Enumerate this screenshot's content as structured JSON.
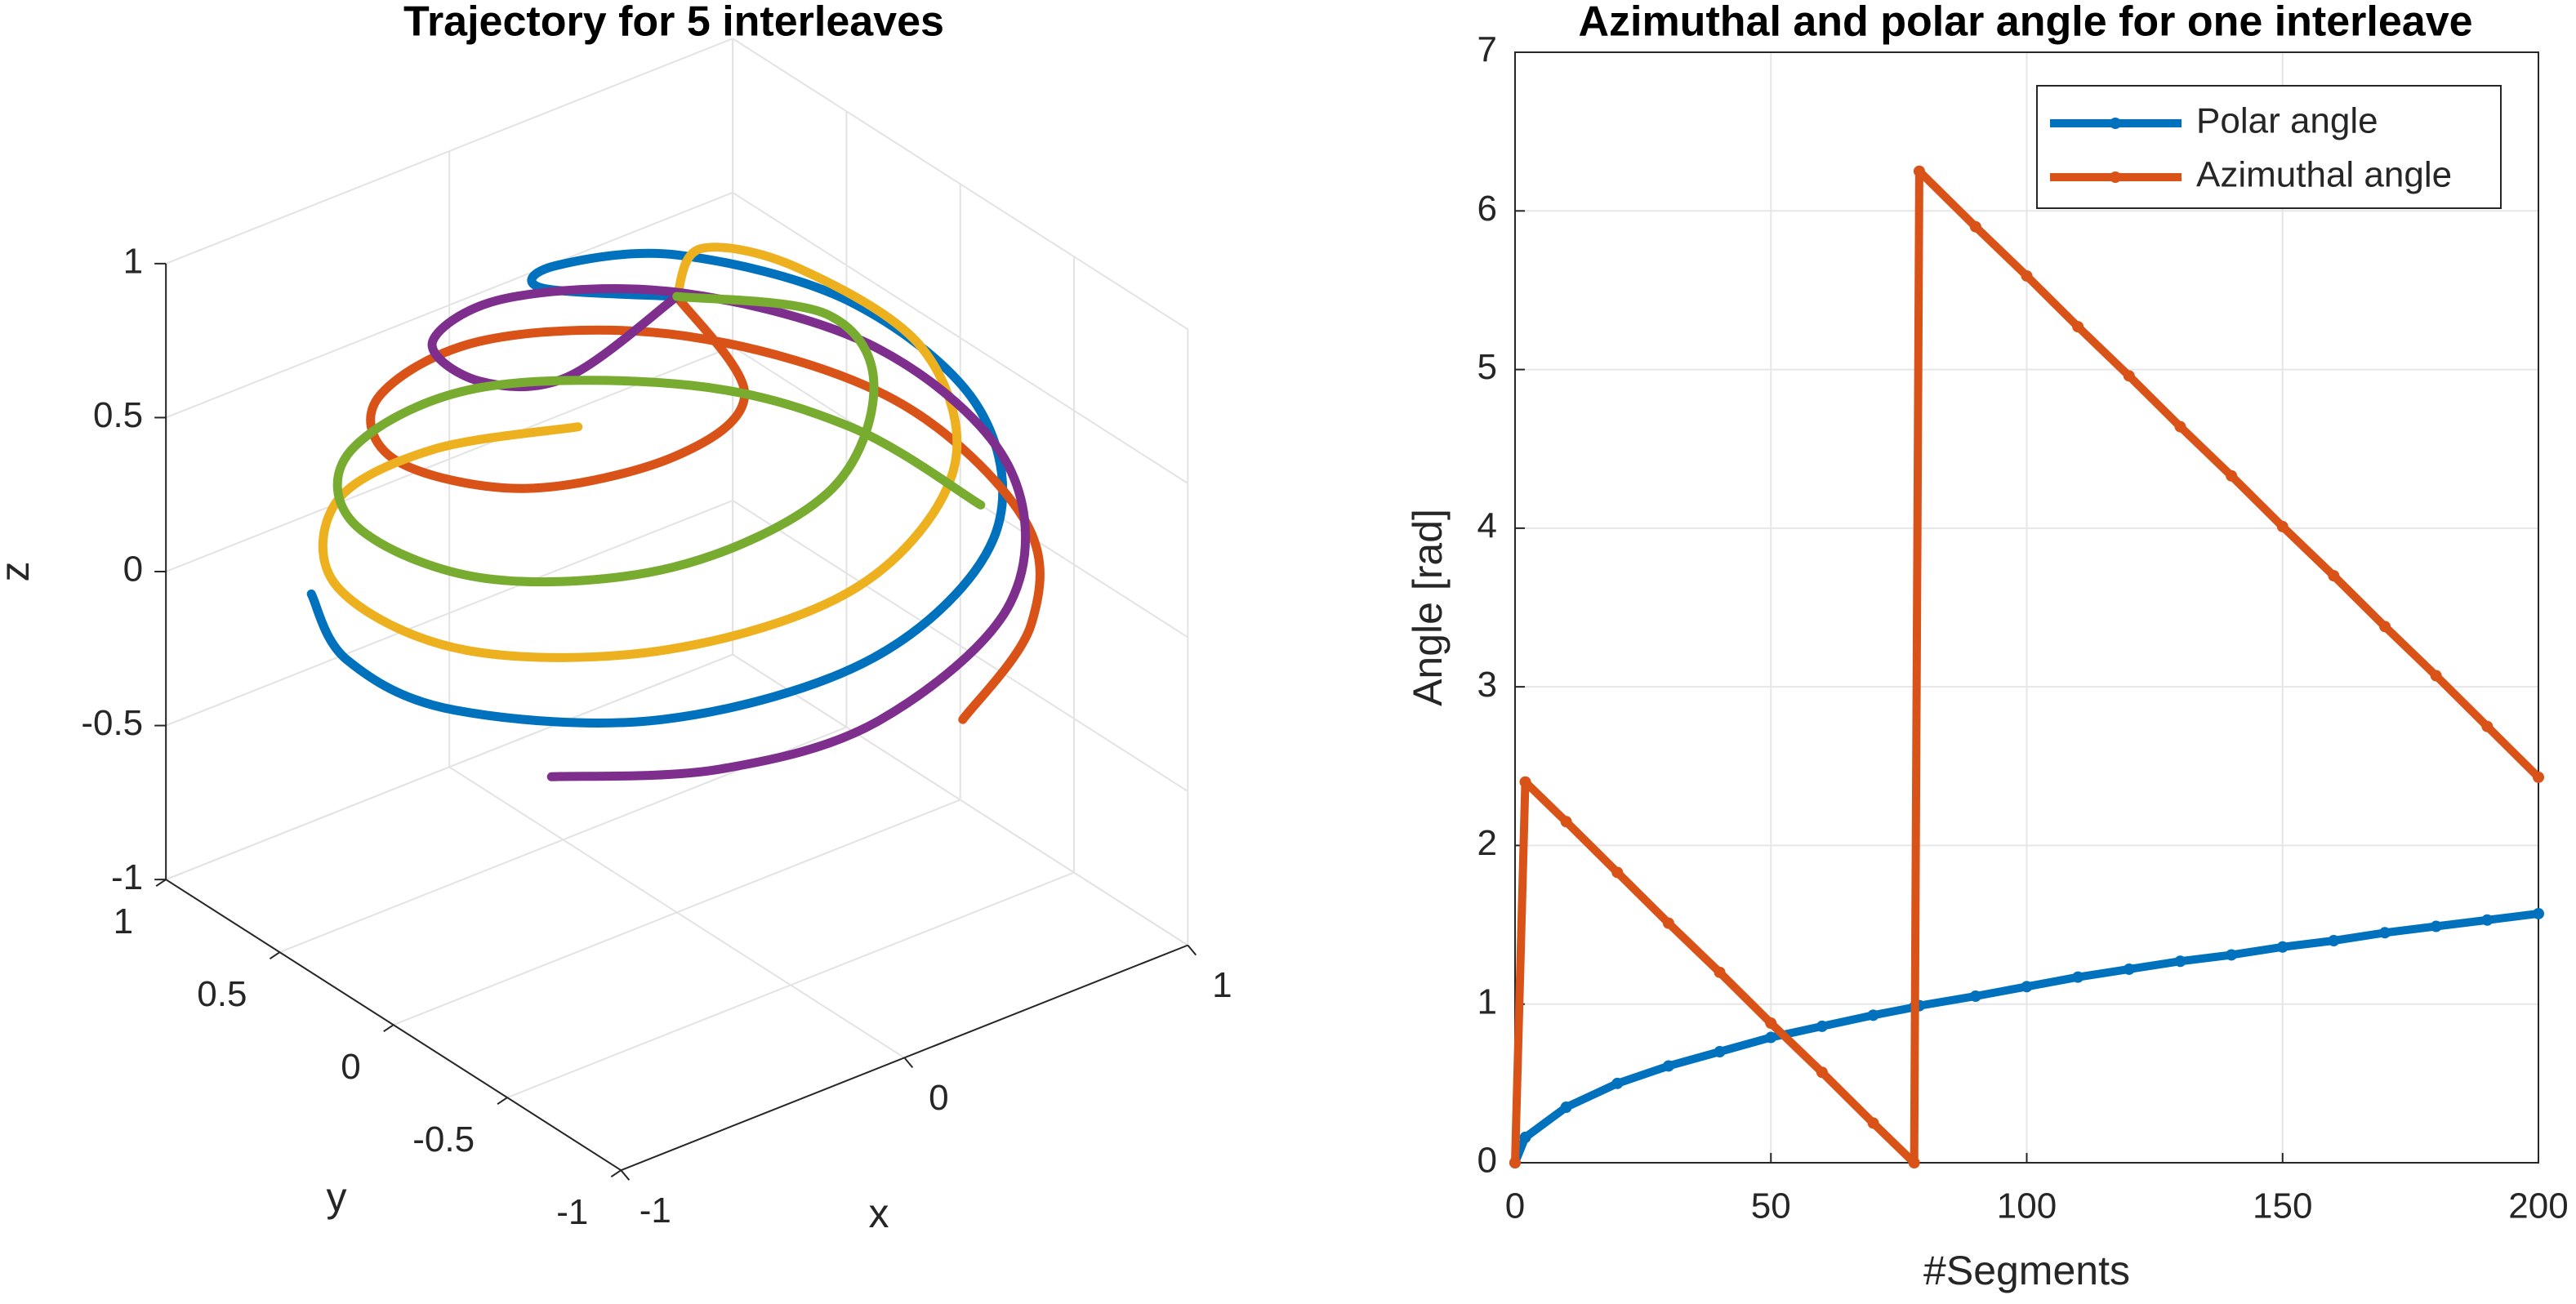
{
  "chart_data": [
    {
      "type": "line3d",
      "title": "Trajectory for 5 interleaves",
      "xlabel": "x",
      "ylabel": "y",
      "zlabel": "z",
      "xlim": [
        -1,
        1
      ],
      "ylim": [
        -1,
        1
      ],
      "zlim": [
        -1,
        1
      ],
      "xticks": [
        -1,
        0,
        1
      ],
      "yticks": [
        -1,
        -0.5,
        0,
        0.5,
        1
      ],
      "zticks": [
        -1,
        -0.5,
        0,
        0.5,
        1
      ],
      "grid": true,
      "series": [
        {
          "color": "#0072BD",
          "x": [
            0,
            -0.17,
            0.03,
            0.45,
            0.78,
            0.81,
            0.49,
            -0.07,
            -0.64,
            -0.97,
            -0.97,
            -0.76
          ],
          "y": [
            0,
            0.38,
            0.57,
            0.55,
            0.2,
            -0.32,
            -0.78,
            -0.95,
            -0.74,
            -0.23,
            0.24,
            0.66
          ],
          "z": [
            1,
            0.91,
            0.82,
            0.71,
            0.6,
            0.49,
            0.4,
            0.3,
            0.21,
            0.12,
            0.06,
            0
          ]
        },
        {
          "color": "#D95319",
          "x": [
            0,
            -0.09,
            -0.36,
            -0.68,
            -0.75,
            -0.46,
            0.07,
            0.62,
            0.95,
            0.92,
            0.64,
            0.23
          ],
          "y": [
            0,
            -0.41,
            -0.44,
            -0.18,
            0.3,
            0.74,
            0.92,
            0.73,
            0.23,
            -0.38,
            -0.76,
            -0.97
          ],
          "z": [
            1,
            0.91,
            0.82,
            0.71,
            0.6,
            0.49,
            0.4,
            0.3,
            0.21,
            0.12,
            0.06,
            0
          ]
        },
        {
          "color": "#EDB120",
          "x": [
            0,
            0.31,
            0.55,
            0.66,
            0.43,
            -0.06,
            -0.59,
            -0.93,
            -0.9,
            -0.52,
            -0.07,
            0.39
          ],
          "y": [
            0,
            0.28,
            0.15,
            -0.26,
            -0.68,
            -0.87,
            -0.7,
            -0.23,
            0.37,
            0.85,
            0.99,
            0.92
          ],
          "z": [
            1,
            0.91,
            0.82,
            0.71,
            0.6,
            0.49,
            0.4,
            0.3,
            0.21,
            0.12,
            0.06,
            0
          ]
        },
        {
          "color": "#7E2F8E",
          "x": [
            0,
            -0.42,
            -0.53,
            -0.38,
            0.05,
            0.56,
            0.89,
            0.88,
            0.51,
            -0.08,
            -0.53,
            -0.86
          ],
          "y": [
            0,
            -0.04,
            0.21,
            0.6,
            0.8,
            0.67,
            0.22,
            -0.36,
            -0.83,
            -0.99,
            -0.85,
            -0.52
          ],
          "z": [
            1,
            0.91,
            0.82,
            0.71,
            0.6,
            0.49,
            0.4,
            0.3,
            0.21,
            0.12,
            0.06,
            0
          ]
        },
        {
          "color": "#77AC30",
          "x": [
            0,
            0.36,
            0.31,
            -0.04,
            -0.51,
            -0.84,
            -0.85,
            -0.5,
            0.08,
            0.65,
            0.92,
            1
          ],
          "y": [
            0,
            -0.21,
            -0.48,
            -0.71,
            -0.62,
            -0.21,
            0.35,
            0.81,
            0.98,
            0.75,
            0.38,
            -0.09
          ],
          "z": [
            1,
            0.91,
            0.82,
            0.71,
            0.6,
            0.49,
            0.4,
            0.3,
            0.21,
            0.12,
            0.06,
            0
          ]
        }
      ]
    },
    {
      "type": "line",
      "title": "Azimuthal and polar angle for one interleave",
      "xlabel": "#Segments",
      "ylabel": "Angle [rad]",
      "x": [
        0,
        2,
        10,
        20,
        30,
        40,
        50,
        60,
        70,
        78,
        79,
        90,
        100,
        110,
        120,
        130,
        140,
        150,
        160,
        170,
        180,
        190,
        200
      ],
      "xlim": [
        0,
        200
      ],
      "xticks": [
        0,
        50,
        100,
        150,
        200
      ],
      "ylim": [
        0,
        7
      ],
      "yticks": [
        0,
        1,
        2,
        3,
        4,
        5,
        6,
        7
      ],
      "grid": true,
      "legend": "northeast",
      "series": [
        {
          "name": "Polar angle",
          "color": "#0072BD",
          "values": [
            0,
            0.16,
            0.35,
            0.5,
            0.61,
            0.7,
            0.79,
            0.86,
            0.93,
            0.98,
            0.99,
            1.05,
            1.11,
            1.17,
            1.22,
            1.27,
            1.31,
            1.36,
            1.4,
            1.45,
            1.49,
            1.53,
            1.57
          ]
        },
        {
          "name": "Azimuthal angle",
          "color": "#D95319",
          "values": [
            0,
            2.4,
            2.15,
            1.83,
            1.51,
            1.2,
            0.88,
            0.57,
            0.25,
            0,
            6.25,
            5.9,
            5.59,
            5.27,
            4.96,
            4.64,
            4.33,
            4.01,
            3.7,
            3.38,
            3.07,
            2.75,
            2.43
          ]
        }
      ]
    }
  ]
}
